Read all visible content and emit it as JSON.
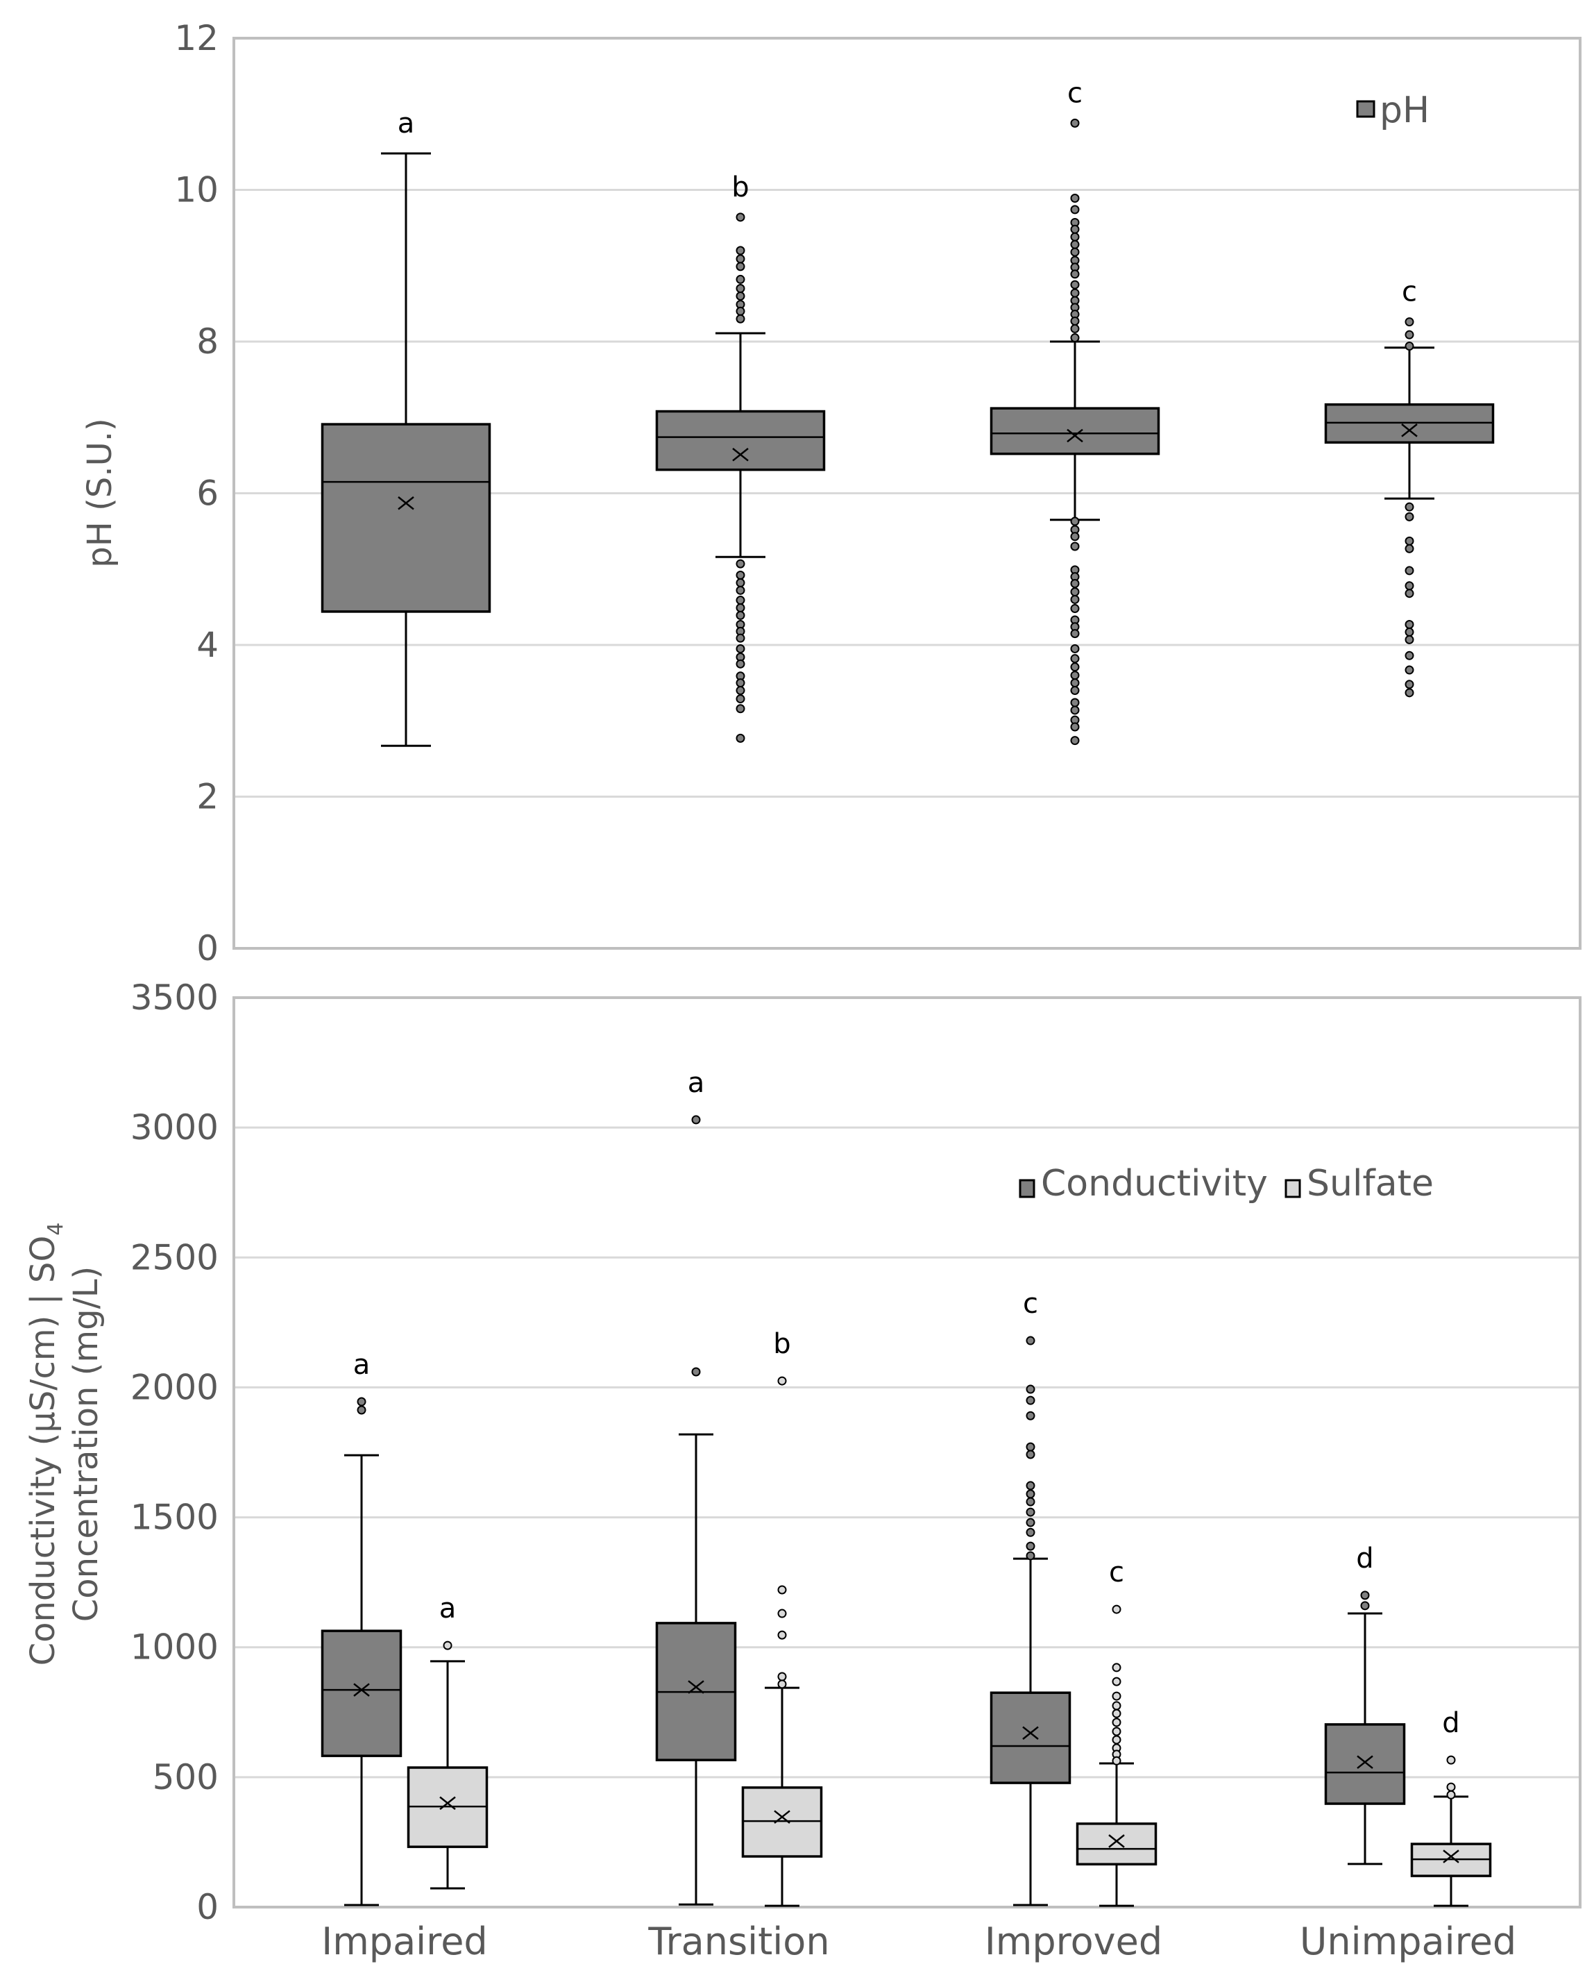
{
  "chart_data": [
    {
      "type": "box",
      "panel": "top",
      "title": "",
      "xlabel": "",
      "ylabel": "pH (S.U.)",
      "ylim": [
        0,
        12
      ],
      "yticks": [
        0,
        2,
        4,
        6,
        8,
        10,
        12
      ],
      "grid": true,
      "legend": {
        "position": "top-right",
        "entries": [
          {
            "name": "pH",
            "color": "#808080"
          }
        ]
      },
      "categories": [
        "Impaired",
        "Transition",
        "Improved",
        "Unimpaired"
      ],
      "series": [
        {
          "name": "pH",
          "color": "#808080",
          "boxes": [
            {
              "category": "Impaired",
              "letter": "a",
              "whisker_low": 2.67,
              "q1": 4.44,
              "median": 6.15,
              "q3": 6.91,
              "whisker_high": 10.48,
              "mean": 5.87,
              "outliers": []
            },
            {
              "category": "Transition",
              "letter": "b",
              "whisker_low": 5.16,
              "q1": 6.31,
              "median": 6.74,
              "q3": 7.08,
              "whisker_high": 8.11,
              "mean": 6.51,
              "outliers": [
                9.64,
                9.2,
                9.09,
                8.99,
                8.82,
                8.7,
                8.6,
                8.49,
                8.4,
                8.3,
                5.07,
                4.92,
                4.82,
                4.72,
                4.59,
                4.49,
                4.39,
                4.27,
                4.18,
                4.09,
                3.95,
                3.84,
                3.75,
                3.59,
                3.5,
                3.4,
                3.29,
                3.16,
                2.77
              ]
            },
            {
              "category": "Improved",
              "letter": "c",
              "whisker_low": 5.65,
              "q1": 6.52,
              "median": 6.79,
              "q3": 7.12,
              "whisker_high": 8.0,
              "mean": 6.76,
              "outliers": [
                10.88,
                9.89,
                9.74,
                9.57,
                9.48,
                9.38,
                9.28,
                9.18,
                9.07,
                8.98,
                8.89,
                8.75,
                8.64,
                8.54,
                8.45,
                8.36,
                8.27,
                8.17,
                8.05,
                5.63,
                5.52,
                5.43,
                5.3,
                4.99,
                4.9,
                4.81,
                4.7,
                4.6,
                4.48,
                4.33,
                4.24,
                4.15,
                3.95,
                3.82,
                3.71,
                3.6,
                3.5,
                3.4,
                3.24,
                3.14,
                3.01,
                2.92,
                2.74
              ]
            },
            {
              "category": "Unimpaired",
              "letter": "c",
              "whisker_low": 5.93,
              "q1": 6.67,
              "median": 6.93,
              "q3": 7.17,
              "whisker_high": 7.92,
              "mean": 6.83,
              "outliers": [
                8.26,
                8.09,
                7.94,
                5.82,
                5.69,
                5.37,
                5.27,
                4.98,
                4.78,
                4.68,
                4.27,
                4.17,
                4.07,
                3.86,
                3.67,
                3.48,
                3.37
              ]
            }
          ]
        }
      ]
    },
    {
      "type": "box",
      "panel": "bottom",
      "title": "",
      "xlabel": "",
      "ylabel_line1": "Conductivity (µS/cm) | SO",
      "ylabel_sub": "4",
      "ylabel_line2": "Concentration (mg/L)",
      "ylim": [
        0,
        3500
      ],
      "yticks": [
        0,
        500,
        1000,
        1500,
        2000,
        2500,
        3000,
        3500
      ],
      "grid": true,
      "legend": {
        "position": "top-right",
        "entries": [
          {
            "name": "Conductivity",
            "color": "#808080"
          },
          {
            "name": "Sulfate",
            "color": "#d9d9d9"
          }
        ]
      },
      "categories": [
        "Impaired",
        "Transition",
        "Improved",
        "Unimpaired"
      ],
      "series": [
        {
          "name": "Conductivity",
          "color": "#808080",
          "boxes": [
            {
              "category": "Impaired",
              "letter": "a",
              "whisker_low": 8,
              "q1": 582,
              "median": 836,
              "q3": 1063,
              "whisker_high": 1739,
              "mean": 836,
              "outliers": [
                1945,
                1913
              ]
            },
            {
              "category": "Transition",
              "letter": "a",
              "whisker_low": 10,
              "q1": 566,
              "median": 828,
              "q3": 1093,
              "whisker_high": 1819,
              "mean": 847,
              "outliers": [
                3030,
                2060
              ]
            },
            {
              "category": "Improved",
              "letter": "c",
              "whisker_low": 8,
              "q1": 478,
              "median": 620,
              "q3": 825,
              "whisker_high": 1341,
              "mean": 670,
              "outliers": [
                2180,
                1993,
                1950,
                1891,
                1771,
                1742,
                1622,
                1590,
                1560,
                1520,
                1480,
                1442,
                1389,
                1352
              ]
            },
            {
              "category": "Unimpaired",
              "letter": "d",
              "whisker_low": 166,
              "q1": 398,
              "median": 518,
              "q3": 703,
              "whisker_high": 1130,
              "mean": 558,
              "outliers": [
                1200,
                1160
              ]
            }
          ]
        },
        {
          "name": "Sulfate",
          "color": "#d9d9d9",
          "boxes": [
            {
              "category": "Impaired",
              "letter": "a",
              "whisker_low": 72,
              "q1": 232,
              "median": 387,
              "q3": 537,
              "whisker_high": 946,
              "mean": 400,
              "outliers": [
                1007
              ]
            },
            {
              "category": "Transition",
              "letter": "b",
              "whisker_low": 5,
              "q1": 195,
              "median": 331,
              "q3": 460,
              "whisker_high": 844,
              "mean": 347,
              "outliers": [
                2025,
                1221,
                1130,
                1047,
                887,
                858
              ]
            },
            {
              "category": "Improved",
              "letter": "c",
              "whisker_low": 5,
              "q1": 165,
              "median": 224,
              "q3": 321,
              "whisker_high": 553,
              "mean": 254,
              "outliers": [
                1146,
                922,
                868,
                812,
                775,
                745,
                711,
                676,
                644,
                612,
                588,
                563
              ]
            },
            {
              "category": "Unimpaired",
              "letter": "d",
              "whisker_low": 5,
              "q1": 120,
              "median": 184,
              "q3": 243,
              "whisker_high": 425,
              "mean": 195,
              "outliers": [
                566,
                462,
                432
              ]
            }
          ]
        }
      ]
    }
  ]
}
